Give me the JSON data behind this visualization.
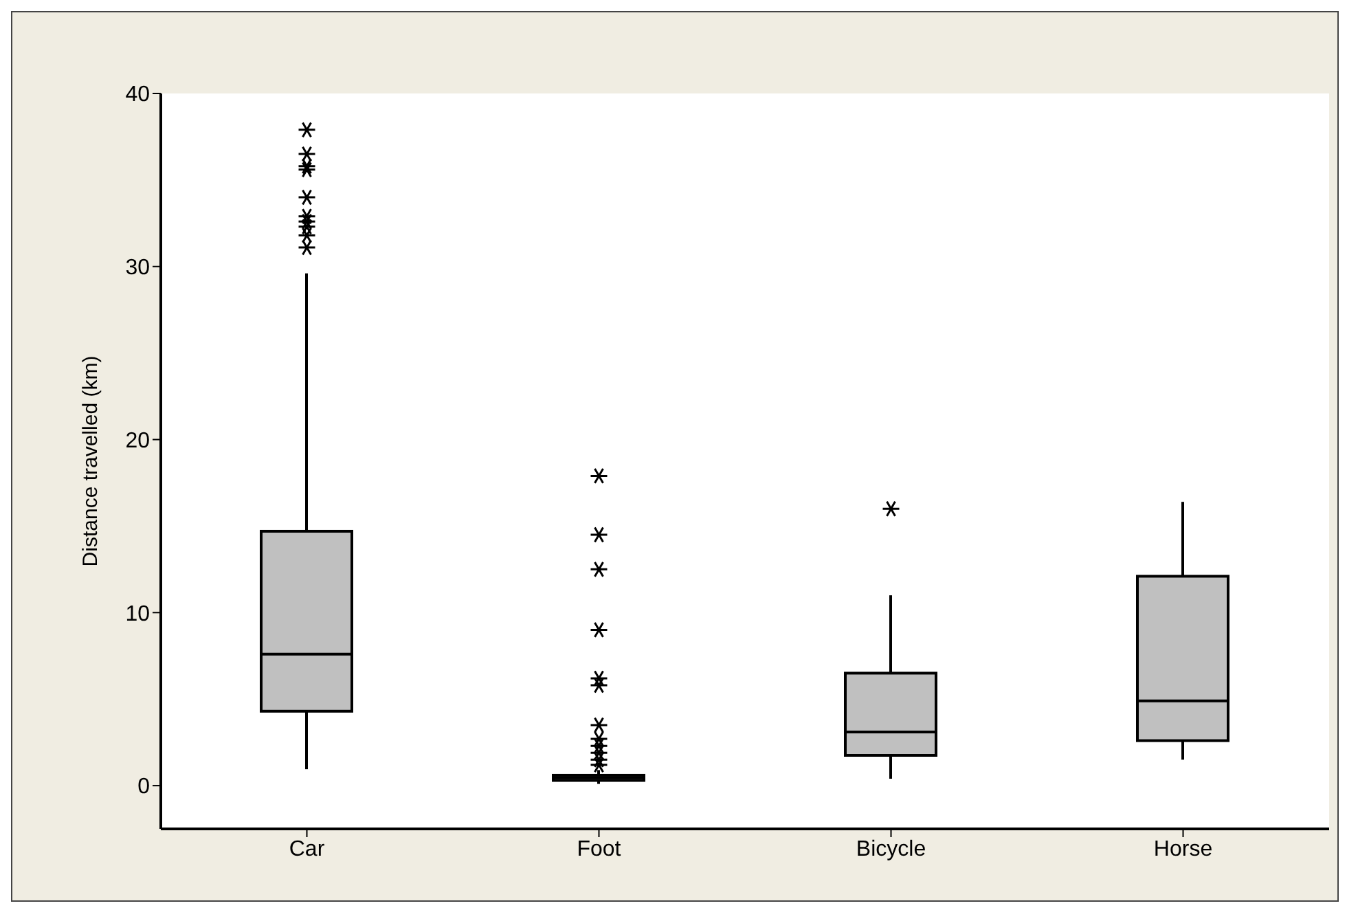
{
  "chart_data": {
    "type": "box",
    "ylabel": "Distance travelled (km)",
    "categories": [
      "Car",
      "Foot",
      "Bicycle",
      "Horse"
    ],
    "color": "#c0c0c0",
    "marker": "star",
    "grid": false,
    "ylim": [
      -2.5,
      40
    ],
    "yticks": [
      0,
      10,
      20,
      30,
      40
    ],
    "boxes": [
      {
        "low": 0.95,
        "q1": 4.3,
        "median": 7.6,
        "q3": 14.7,
        "high": 29.6,
        "outliers": [
          37.9,
          36.5,
          35.8,
          35.6,
          34.0,
          32.9,
          32.6,
          32.3,
          31.8,
          31.1
        ]
      },
      {
        "low": 0.1,
        "q1": 0.3,
        "median": 0.45,
        "q3": 0.6,
        "high": 0.9,
        "outliers": [
          17.9,
          14.5,
          12.5,
          9.0,
          6.2,
          5.8,
          3.5,
          2.7,
          2.3,
          1.9,
          1.5,
          1.2
        ]
      },
      {
        "low": 0.4,
        "q1": 1.75,
        "median": 3.1,
        "q3": 6.5,
        "high": 11.0,
        "outliers": [
          16.0
        ]
      },
      {
        "low": 1.5,
        "q1": 2.6,
        "median": 4.9,
        "q3": 12.1,
        "high": 16.4
      }
    ]
  }
}
